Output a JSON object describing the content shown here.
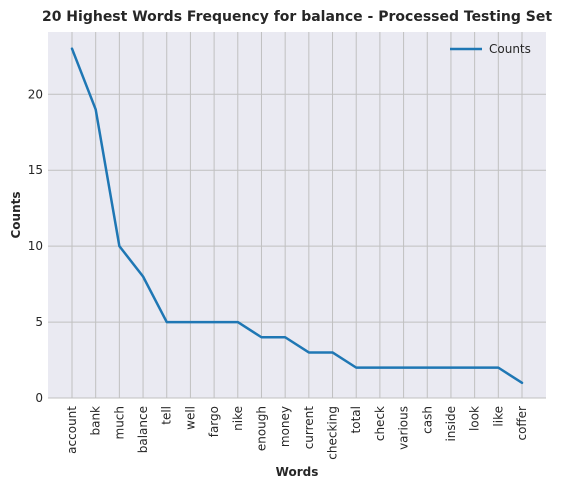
{
  "chart_data": {
    "type": "line",
    "title": "20 Highest Words Frequency for balance - Processed Testing Set",
    "xlabel": "Words",
    "ylabel": "Counts",
    "categories": [
      "account",
      "bank",
      "much",
      "balance",
      "tell",
      "well",
      "fargo",
      "nike",
      "enough",
      "money",
      "current",
      "checking",
      "total",
      "check",
      "various",
      "cash",
      "inside",
      "look",
      "like",
      "coffer"
    ],
    "series": [
      {
        "name": "Counts",
        "values": [
          23,
          19,
          10,
          8,
          5,
          5,
          5,
          5,
          4,
          4,
          3,
          3,
          2,
          2,
          2,
          2,
          2,
          2,
          2,
          1
        ],
        "color": "#1f77b4"
      }
    ],
    "yticks": [
      0,
      5,
      10,
      15,
      20
    ],
    "ylim": [
      0,
      24.1
    ],
    "grid": true,
    "legend": "top-right",
    "background": "#eaeaf2",
    "gridcolor": "#c0c0c0"
  }
}
